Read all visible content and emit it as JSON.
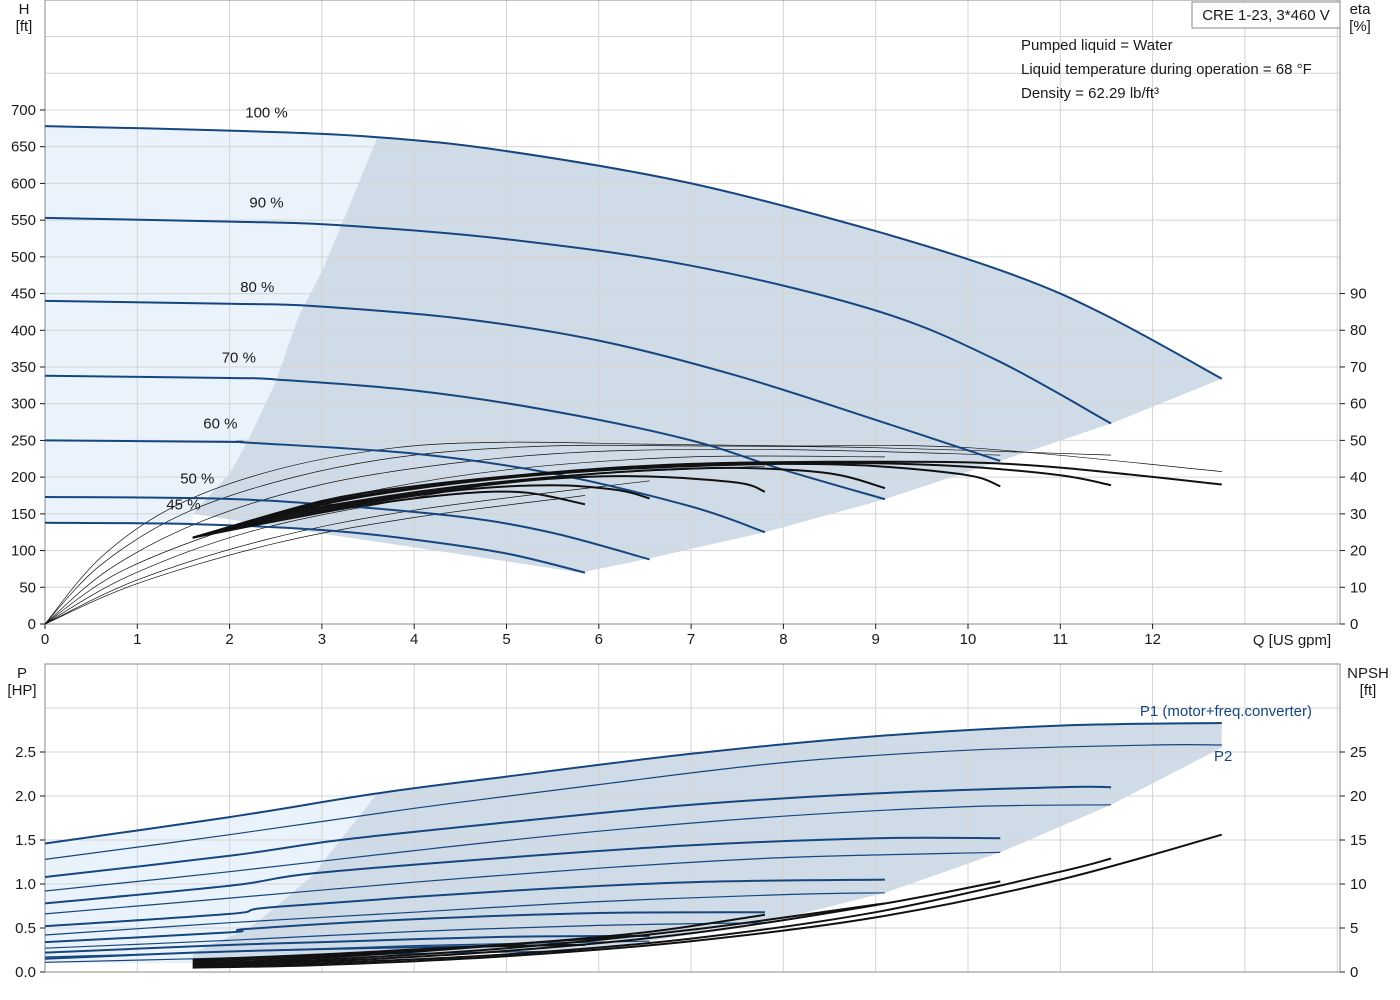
{
  "model_label": "CRE 1-23, 3*460 V",
  "info_lines": [
    "Pumped liquid = Water",
    "Liquid temperature during operation = 68 °F",
    "Density = 62.29 lb/ft³"
  ],
  "chart_data": [
    {
      "type": "line",
      "xlabel": "Q [US gpm]",
      "ylabel_left": {
        "name": "H",
        "unit": "[ft]"
      },
      "ylabel_right": {
        "name": "eta",
        "unit": "[%]"
      },
      "xlim": [
        0,
        14
      ],
      "x_ticks": [
        0,
        1,
        2,
        3,
        4,
        5,
        6,
        7,
        8,
        9,
        10,
        11,
        12
      ],
      "ylim_left": [
        0,
        700
      ],
      "y_ticks_left": [
        0,
        50,
        100,
        150,
        200,
        250,
        300,
        350,
        400,
        450,
        500,
        550,
        600,
        650,
        700
      ],
      "y_ticks_right": [
        0,
        10,
        20,
        30,
        40,
        50,
        60,
        70,
        80,
        90
      ],
      "operating_area": {
        "left_boundary": [
          [
            3.6,
            663
          ],
          [
            3.3,
            570
          ],
          [
            3.0,
            480
          ],
          [
            2.75,
            420
          ],
          [
            2.5,
            330
          ],
          [
            2.2,
            250
          ],
          [
            2.0,
            205
          ],
          [
            1.6,
            150
          ]
        ],
        "bottom_boundary": [
          [
            1.6,
            150
          ],
          [
            5.8,
            70
          ],
          [
            6.5,
            88
          ],
          [
            7.8,
            125
          ],
          [
            9.1,
            170
          ],
          [
            10.35,
            222
          ],
          [
            11.55,
            273
          ],
          [
            12.75,
            334
          ]
        ]
      },
      "head_curves": [
        {
          "label": "100 %",
          "x": [
            0,
            2,
            3.6,
            5,
            7,
            9,
            10.5,
            11.5,
            12.75
          ],
          "y": [
            678,
            672,
            663,
            644,
            600,
            535,
            475,
            420,
            334
          ]
        },
        {
          "label": "90 %",
          "x": [
            0,
            2,
            3.2,
            5,
            7,
            9,
            10.3,
            11.55
          ],
          "y": [
            553,
            548,
            543,
            524,
            488,
            427,
            360,
            273
          ]
        },
        {
          "label": "80 %",
          "x": [
            0,
            2,
            2.9,
            4.5,
            6,
            7.5,
            9,
            10.35
          ],
          "y": [
            440,
            436,
            433,
            416,
            386,
            338,
            278,
            222
          ]
        },
        {
          "label": "70 %",
          "x": [
            0,
            2,
            2.5,
            4,
            5.5,
            7,
            8,
            9.1
          ],
          "y": [
            338,
            335,
            333,
            318,
            290,
            250,
            210,
            170
          ]
        },
        {
          "label": "60 %",
          "x": [
            0,
            2,
            2.2,
            4,
            5.5,
            7,
            7.8
          ],
          "y": [
            250,
            248,
            247,
            232,
            205,
            160,
            125
          ]
        },
        {
          "label": "50 %",
          "x": [
            0,
            1.8,
            3,
            4.5,
            5.5,
            6.55
          ],
          "y": [
            173,
            171,
            163,
            146,
            124,
            88
          ]
        },
        {
          "label": "45 %",
          "x": [
            0,
            1.6,
            3,
            4,
            5,
            5.85
          ],
          "y": [
            138,
            136,
            128,
            115,
            96,
            70
          ]
        }
      ],
      "eta_curves": [
        {
          "x": [
            1.6,
            3,
            4,
            5,
            6,
            7,
            8,
            9,
            10,
            11,
            12.75
          ],
          "y": [
            23.5,
            33.5,
            37.5,
            40.2,
            42.3,
            43.6,
            44.1,
            44.2,
            44.0,
            42.6,
            38
          ]
        },
        {
          "x": [
            1.6,
            3,
            4,
            5,
            6,
            7,
            8,
            9,
            10,
            11,
            11.55
          ],
          "y": [
            23.5,
            33,
            37,
            40,
            42,
            43.3,
            43.8,
            43.8,
            42.8,
            40.5,
            37.8
          ]
        },
        {
          "x": [
            1.6,
            3,
            4,
            5,
            6,
            7,
            8,
            9,
            10,
            10.35
          ],
          "y": [
            23.5,
            32.5,
            36.8,
            39.8,
            41.8,
            43,
            43.6,
            43.0,
            40.5,
            37.5
          ]
        },
        {
          "x": [
            1.6,
            2.5,
            3.5,
            4.5,
            5.5,
            6.5,
            7.5,
            8.5,
            9.1
          ],
          "y": [
            23.5,
            29.5,
            34,
            37.5,
            40,
            41.8,
            42.5,
            41.0,
            37
          ]
        },
        {
          "x": [
            1.6,
            2.5,
            3.5,
            4.5,
            5.5,
            6.5,
            7.5,
            7.8
          ],
          "y": [
            23.5,
            29,
            33.5,
            37,
            39.6,
            40.2,
            38.5,
            36
          ]
        },
        {
          "x": [
            1.6,
            2.5,
            3.5,
            4.5,
            5.5,
            6.2,
            6.55
          ],
          "y": [
            23.5,
            28.5,
            33,
            36.5,
            37.8,
            36.5,
            34.2
          ]
        },
        {
          "x": [
            1.6,
            2.5,
            3.5,
            4.5,
            5.2,
            5.85
          ],
          "y": [
            23.5,
            28,
            32.5,
            35.5,
            35.8,
            32.6
          ]
        }
      ]
    },
    {
      "type": "line",
      "xlabel": "",
      "ylabel_left": {
        "name": "P",
        "unit": "[HP]"
      },
      "ylabel_right": {
        "name": "NPSH",
        "unit": "[ft]"
      },
      "xlim": [
        0,
        14
      ],
      "ylim_left": [
        0,
        3
      ],
      "y_ticks_left": [
        "0.0",
        "0.5",
        "1.0",
        "1.5",
        "2.0",
        "2.5"
      ],
      "y_ticks_right": [
        0,
        5,
        10,
        15,
        20,
        25
      ],
      "legend": [
        {
          "label": "P1 (motor+freq.converter)",
          "color": "#16467f"
        },
        {
          "label": "P2",
          "color": "#16467f"
        }
      ],
      "p1_curves": [
        {
          "x": [
            0,
            2,
            3.6,
            5,
            7,
            9,
            11,
            12.75
          ],
          "y": [
            1.46,
            1.76,
            2.03,
            2.22,
            2.48,
            2.68,
            2.8,
            2.83
          ]
        },
        {
          "x": [
            0,
            2,
            3.2,
            5,
            7,
            9,
            11,
            11.55
          ],
          "y": [
            1.08,
            1.32,
            1.5,
            1.7,
            1.9,
            2.03,
            2.1,
            2.1
          ]
        },
        {
          "x": [
            0,
            2,
            2.9,
            5,
            7,
            9,
            10.35
          ],
          "y": [
            0.78,
            0.98,
            1.12,
            1.3,
            1.44,
            1.52,
            1.52
          ]
        },
        {
          "x": [
            0,
            2,
            2.5,
            5,
            7,
            9.1
          ],
          "y": [
            0.52,
            0.66,
            0.74,
            0.92,
            1.02,
            1.05
          ]
        },
        {
          "x": [
            0,
            2,
            2.2,
            4,
            6,
            7.8
          ],
          "y": [
            0.34,
            0.45,
            0.49,
            0.6,
            0.67,
            0.68
          ]
        },
        {
          "x": [
            0,
            1.8,
            3,
            5,
            6.55
          ],
          "y": [
            0.22,
            0.3,
            0.34,
            0.4,
            0.41
          ]
        },
        {
          "x": [
            0,
            1.6,
            3,
            5,
            5.85
          ],
          "y": [
            0.15,
            0.22,
            0.26,
            0.3,
            0.31
          ]
        }
      ],
      "p2_curves": [
        {
          "x": [
            0,
            2,
            4,
            6,
            8,
            10,
            12,
            12.75
          ],
          "y": [
            1.28,
            1.56,
            1.86,
            2.13,
            2.38,
            2.52,
            2.58,
            2.58
          ]
        },
        {
          "x": [
            0,
            2,
            4,
            6,
            8,
            10,
            11.55
          ],
          "y": [
            0.92,
            1.14,
            1.38,
            1.6,
            1.77,
            1.88,
            1.9
          ]
        },
        {
          "x": [
            0,
            2,
            4,
            6,
            8,
            10.35
          ],
          "y": [
            0.66,
            0.84,
            1.02,
            1.18,
            1.3,
            1.36
          ]
        },
        {
          "x": [
            0,
            2,
            4,
            6,
            8,
            9.1
          ],
          "y": [
            0.42,
            0.56,
            0.68,
            0.8,
            0.88,
            0.9
          ]
        },
        {
          "x": [
            0,
            2,
            4,
            6,
            7.8
          ],
          "y": [
            0.27,
            0.36,
            0.46,
            0.53,
            0.56
          ]
        },
        {
          "x": [
            0,
            2,
            4,
            6.55
          ],
          "y": [
            0.17,
            0.23,
            0.3,
            0.35
          ]
        },
        {
          "x": [
            0,
            2,
            4,
            5.85
          ],
          "y": [
            0.11,
            0.16,
            0.21,
            0.24
          ]
        }
      ],
      "npsh_curves": [
        {
          "x": [
            1.6,
            3,
            5,
            7,
            9,
            11,
            12.75
          ],
          "y": [
            0.5,
            0.8,
            1.8,
            3.5,
            6.2,
            10.5,
            15.6
          ]
        },
        {
          "x": [
            1.6,
            3,
            5,
            7,
            9,
            11,
            11.55
          ],
          "y": [
            0.6,
            1,
            2,
            3.8,
            6.8,
            11.4,
            12.9
          ]
        },
        {
          "x": [
            1.6,
            3,
            5,
            7,
            9,
            10.35
          ],
          "y": [
            0.8,
            1.2,
            2.4,
            4.4,
            7.6,
            10.3
          ]
        },
        {
          "x": [
            1.6,
            3,
            5,
            7,
            9.1
          ],
          "y": [
            0.9,
            1.4,
            2.7,
            4.8,
            7.8
          ]
        },
        {
          "x": [
            1.6,
            3,
            5,
            6.5,
            7.8
          ],
          "y": [
            1,
            1.6,
            3.1,
            4.5,
            6.5
          ]
        },
        {
          "x": [
            1.6,
            3,
            4.5,
            6.55
          ],
          "y": [
            1.2,
            1.8,
            2.8,
            4.2
          ]
        },
        {
          "x": [
            1.6,
            3,
            4.5,
            5.85
          ],
          "y": [
            1.4,
            2,
            2.8,
            3.1
          ]
        }
      ]
    }
  ]
}
